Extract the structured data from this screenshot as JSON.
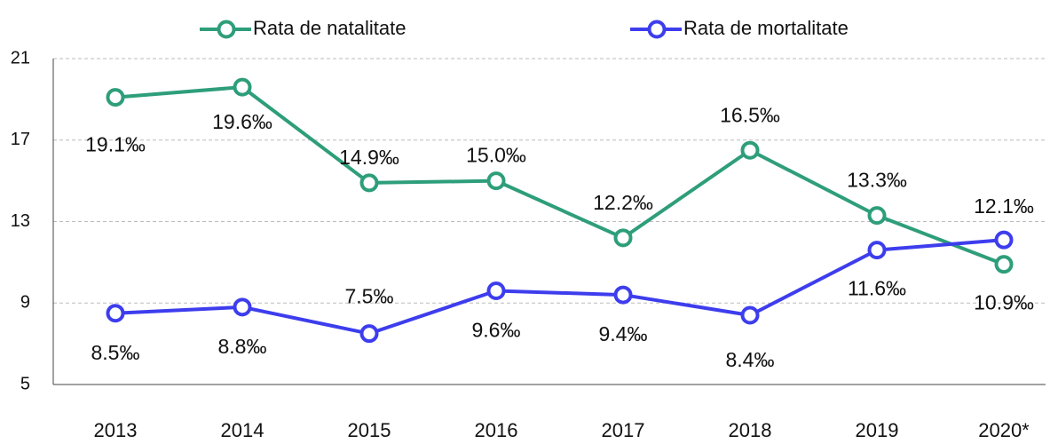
{
  "chart_data": {
    "type": "line",
    "categories": [
      "2013",
      "2014",
      "2015",
      "2016",
      "2017",
      "2018",
      "2019",
      "2020*"
    ],
    "series": [
      {
        "name": "Rata de natalitate",
        "color": "#2e9e7a",
        "values": [
          19.1,
          19.6,
          14.9,
          15.0,
          12.2,
          16.5,
          13.3,
          10.9
        ],
        "value_labels": [
          "19.1‰",
          "19.6‰",
          "14.9‰",
          "15.0‰",
          "12.2‰",
          "16.5‰",
          "13.3‰",
          "10.9‰"
        ]
      },
      {
        "name": "Rata de mortalitate",
        "color": "#3d3dee",
        "values": [
          8.5,
          8.8,
          7.5,
          9.6,
          9.4,
          8.4,
          11.6,
          12.1
        ],
        "value_labels": [
          "8.5‰",
          "8.8‰",
          "7.5‰",
          "9.6‰",
          "9.4‰",
          "8.4‰",
          "11.6‰",
          "12.1‰"
        ]
      }
    ],
    "ylim": [
      5,
      21
    ],
    "yticks": [
      5,
      9,
      13,
      17,
      21
    ],
    "grid": true,
    "legend": "top"
  }
}
